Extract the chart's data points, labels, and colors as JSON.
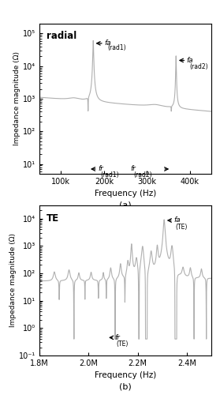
{
  "panel_a": {
    "label": "radial",
    "xlabel": "Frequency (Hz)",
    "ylabel": "Impedance magnitude (Ω)",
    "xlim": [
      50000,
      450000
    ],
    "ylim_log": [
      5,
      200000
    ],
    "xticks": [
      100000,
      200000,
      300000,
      400000
    ],
    "xticklabels": [
      "100k",
      "200k",
      "300k",
      "400k"
    ],
    "ytick_vals": [
      10,
      100,
      1000,
      10000,
      100000
    ],
    "ytick_labels": [
      "10¹",
      "10²",
      "10³",
      "10⁴",
      "10⁵"
    ]
  },
  "panel_b": {
    "label": "TE",
    "xlabel": "Frequency (Hz)",
    "ylabel": "Impedance magnitude (Ω)",
    "xlim": [
      1800000,
      2500000
    ],
    "ylim_log": [
      0.1,
      30000
    ],
    "xticks": [
      1800000,
      2000000,
      2200000,
      2400000
    ],
    "xticklabels": [
      "1.8M",
      "2.0M",
      "2.2M",
      "2.4M"
    ],
    "ytick_vals": [
      0.1,
      1,
      10,
      100,
      1000,
      10000
    ],
    "ytick_labels": [
      "10⁻¹",
      "10⁰",
      "10¹",
      "10²",
      "10³",
      "10⁴"
    ]
  },
  "line_color": "#b0b0b0",
  "line_width": 0.8,
  "bg_color": "#ffffff"
}
